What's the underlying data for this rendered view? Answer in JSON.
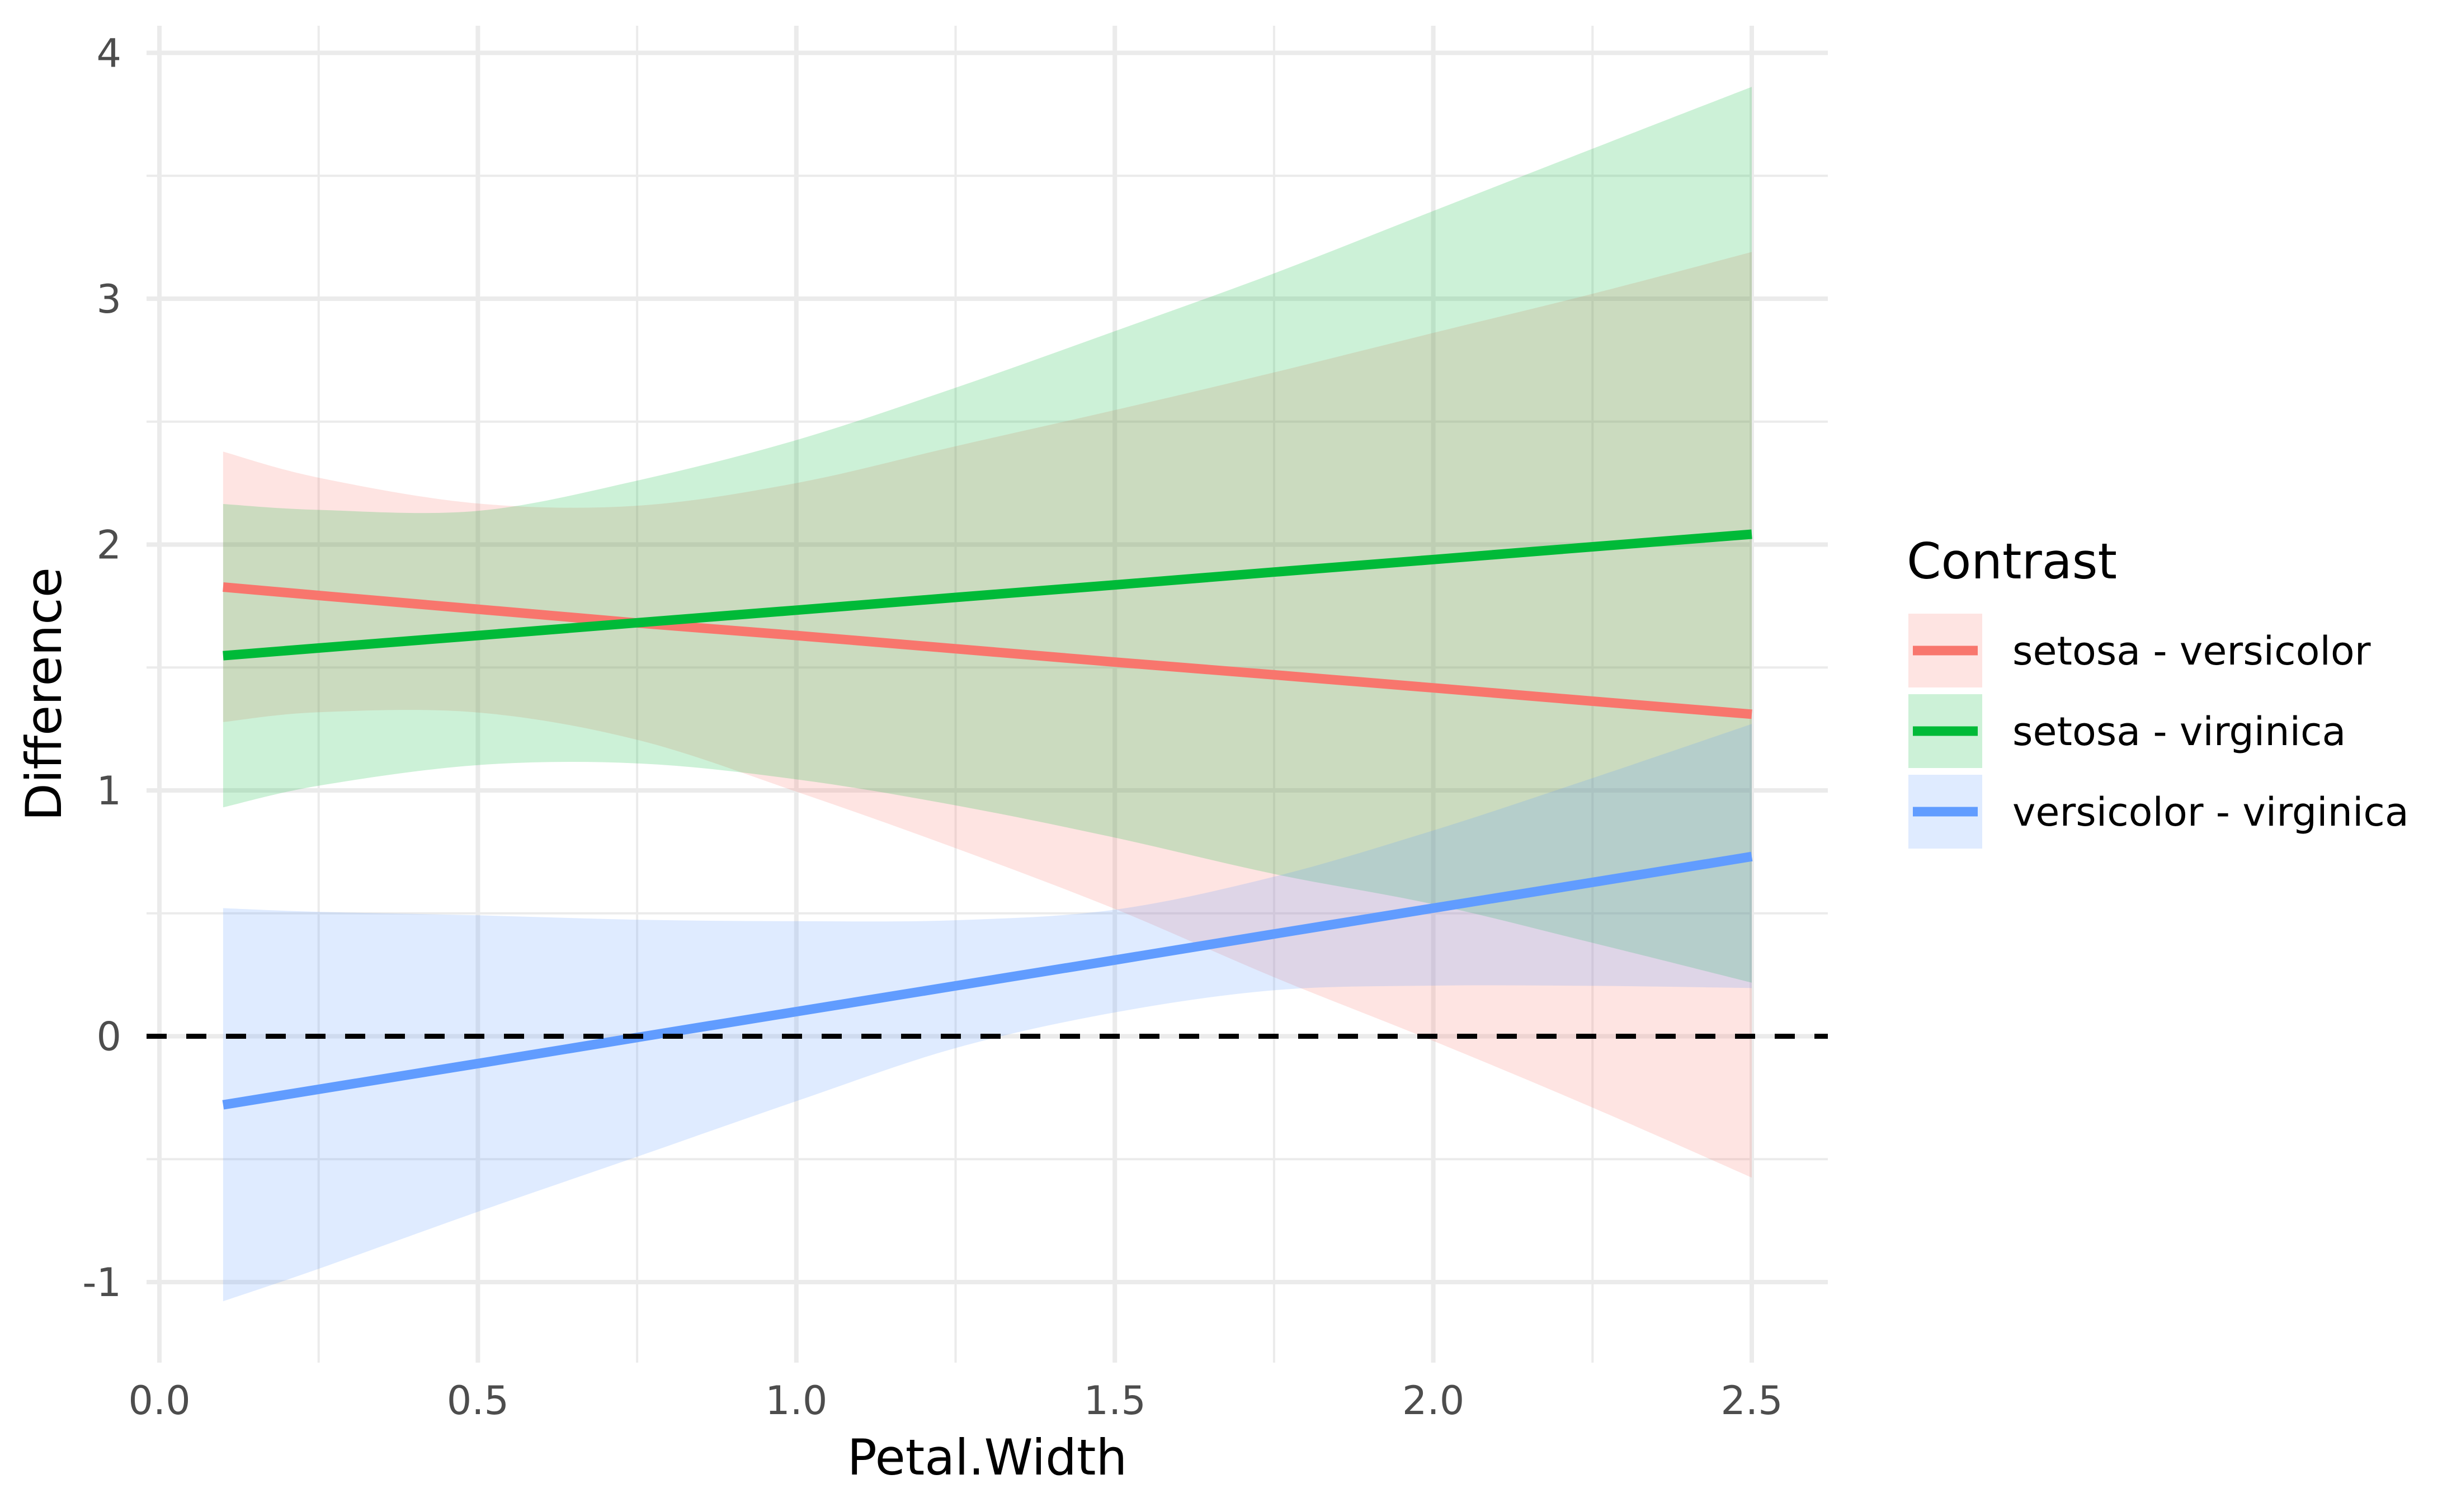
{
  "chart_data": {
    "type": "line",
    "subtype": "line-with-confidence-ribbons",
    "title": "",
    "xlabel": "Petal.Width",
    "ylabel": "Difference",
    "xlim": [
      -0.05,
      2.62
    ],
    "ylim": [
      -1.33,
      4.2
    ],
    "grid": true,
    "x_ticks": [
      0.0,
      0.5,
      1.0,
      1.5,
      2.0,
      2.5
    ],
    "x_tick_labels": [
      "0.0",
      "0.5",
      "1.0",
      "1.5",
      "2.0",
      "2.5"
    ],
    "x_minor_ticks": [
      0.25,
      0.75,
      1.25,
      1.75,
      2.25
    ],
    "y_ticks": [
      -1,
      0,
      1,
      2,
      3,
      4
    ],
    "y_tick_labels": [
      "-1",
      "0",
      "1",
      "2",
      "3",
      "4"
    ],
    "y_minor_ticks": [
      -0.5,
      0.5,
      1.5,
      2.5,
      3.5
    ],
    "reference_line": {
      "y": 0,
      "style": "dashed",
      "color": "#000000"
    },
    "legend": {
      "title": "Contrast",
      "position": "right"
    },
    "x": [
      0.1,
      0.25,
      0.5,
      0.75,
      1.0,
      1.25,
      1.5,
      1.75,
      2.0,
      2.25,
      2.5
    ],
    "series": [
      {
        "name": "setosa - versicolor",
        "color": "#F8766D",
        "fill": "#F8766D",
        "estimate": [
          1.827,
          1.793,
          1.737,
          1.681,
          1.63,
          1.576,
          1.522,
          1.47,
          1.417,
          1.363,
          1.31
        ],
        "lower": [
          1.278,
          1.318,
          1.317,
          1.206,
          0.995,
          0.765,
          0.518,
          0.24,
          -0.019,
          -0.29,
          -0.575
        ],
        "upper": [
          2.378,
          2.272,
          2.167,
          2.158,
          2.25,
          2.4,
          2.547,
          2.7,
          2.861,
          3.02,
          3.19
        ]
      },
      {
        "name": "setosa - virginica",
        "color": "#00BA38",
        "fill": "#00BA38",
        "estimate": [
          1.548,
          1.579,
          1.63,
          1.682,
          1.733,
          1.785,
          1.836,
          1.888,
          1.939,
          1.991,
          2.042
        ],
        "lower": [
          0.931,
          1.019,
          1.103,
          1.11,
          1.045,
          0.939,
          0.808,
          0.66,
          0.537,
          0.38,
          0.218
        ],
        "upper": [
          2.165,
          2.141,
          2.137,
          2.26,
          2.425,
          2.638,
          2.868,
          3.103,
          3.357,
          3.61,
          3.862
        ]
      },
      {
        "name": "versicolor - virginica",
        "color": "#619CFF",
        "fill": "#619CFF",
        "estimate": [
          -0.279,
          -0.216,
          -0.111,
          -0.005,
          0.1,
          0.205,
          0.31,
          0.416,
          0.521,
          0.626,
          0.731
        ],
        "lower": [
          -1.078,
          -0.946,
          -0.714,
          -0.49,
          -0.264,
          -0.048,
          0.097,
          0.187,
          0.206,
          0.205,
          0.196
        ],
        "upper": [
          0.521,
          0.506,
          0.492,
          0.474,
          0.468,
          0.472,
          0.515,
          0.649,
          0.837,
          1.05,
          1.27
        ]
      }
    ]
  }
}
